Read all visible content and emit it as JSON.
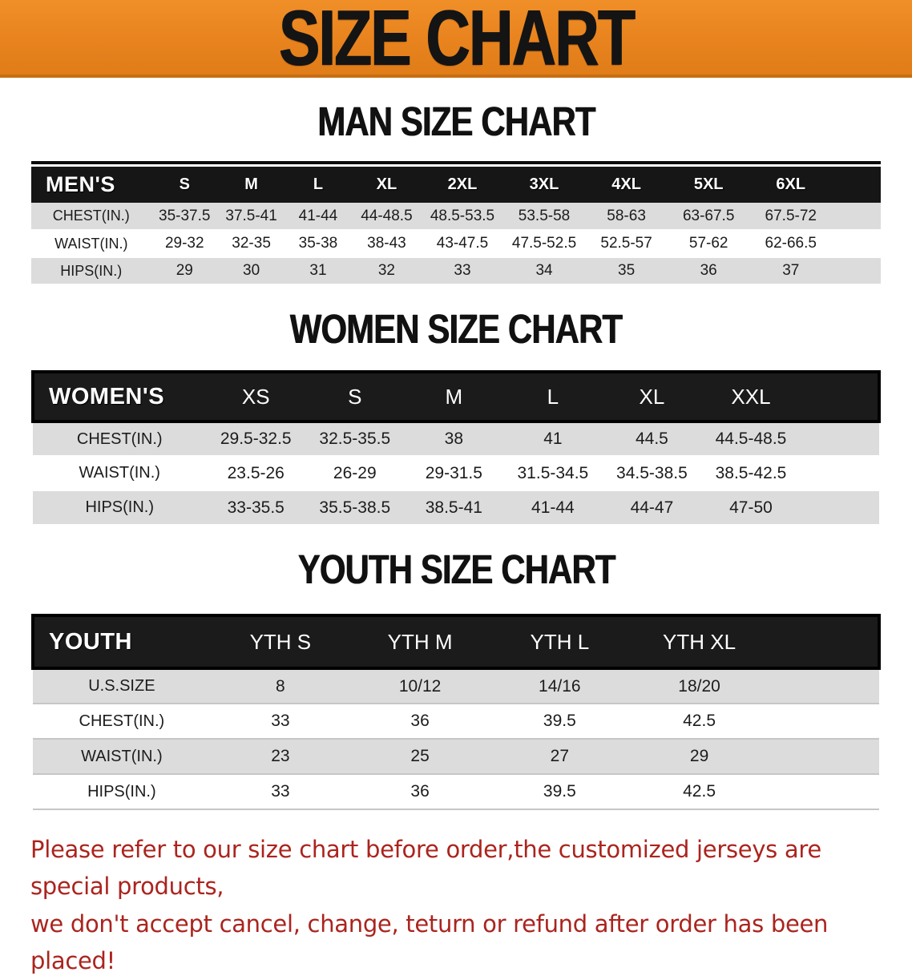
{
  "banner": {
    "title": "SIZE CHART",
    "bg_color": "#E8831E"
  },
  "sections": {
    "men": {
      "heading": "MAN SIZE CHART",
      "table": {
        "header_label": "MEN'S",
        "columns": [
          "S",
          "M",
          "L",
          "XL",
          "2XL",
          "3XL",
          "4XL",
          "5XL",
          "6XL"
        ],
        "rows": [
          {
            "label": "CHEST(IN.)",
            "values": [
              "35-37.5",
              "37.5-41",
              "41-44",
              "44-48.5",
              "48.5-53.5",
              "53.5-58",
              "58-63",
              "63-67.5",
              "67.5-72"
            ]
          },
          {
            "label": "WAIST(IN.)",
            "values": [
              "29-32",
              "32-35",
              "35-38",
              "38-43",
              "43-47.5",
              "47.5-52.5",
              "52.5-57",
              "57-62",
              "62-66.5"
            ]
          },
          {
            "label": "HIPS(IN.)",
            "values": [
              "29",
              "30",
              "31",
              "32",
              "33",
              "34",
              "35",
              "36",
              "37"
            ]
          }
        ]
      }
    },
    "women": {
      "heading": "WOMEN SIZE CHART",
      "table": {
        "header_label": "WOMEN'S",
        "columns": [
          "XS",
          "S",
          "M",
          "L",
          "XL",
          "XXL"
        ],
        "rows": [
          {
            "label": "CHEST(IN.)",
            "values": [
              "29.5-32.5",
              "32.5-35.5",
              "38",
              "41",
              "44.5",
              "44.5-48.5"
            ]
          },
          {
            "label": "WAIST(IN.)",
            "values": [
              "23.5-26",
              "26-29",
              "29-31.5",
              "31.5-34.5",
              "34.5-38.5",
              "38.5-42.5"
            ]
          },
          {
            "label": "HIPS(IN.)",
            "values": [
              "33-35.5",
              "35.5-38.5",
              "38.5-41",
              "41-44",
              "44-47",
              "47-50"
            ]
          }
        ]
      }
    },
    "youth": {
      "heading": "YOUTH SIZE CHART",
      "table": {
        "header_label": "YOUTH",
        "columns": [
          "YTH S",
          "YTH M",
          "YTH L",
          "YTH XL"
        ],
        "rows": [
          {
            "label": "U.S.SIZE",
            "values": [
              "8",
              "10/12",
              "14/16",
              "18/20"
            ]
          },
          {
            "label": "CHEST(IN.)",
            "values": [
              "33",
              "36",
              "39.5",
              "42.5"
            ]
          },
          {
            "label": "WAIST(IN.)",
            "values": [
              "23",
              "25",
              "27",
              "29"
            ]
          },
          {
            "label": "HIPS(IN.)",
            "values": [
              "33",
              "36",
              "39.5",
              "42.5"
            ]
          }
        ]
      }
    }
  },
  "disclaimer": {
    "line1": "Please refer to our size chart before order,the customized jerseys are special products,",
    "line2": "we don't accept cancel, change, teturn or refund after order has been placed!",
    "color": "#AB241E"
  }
}
